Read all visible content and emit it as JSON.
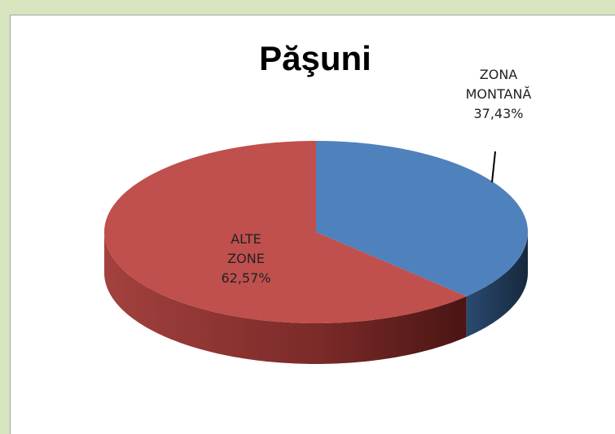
{
  "chart_data": {
    "type": "pie",
    "title": "Păşuni",
    "categories": [
      "ZONA MONTANĂ",
      "ALTE ZONE"
    ],
    "values": [
      37.43,
      62.57
    ],
    "value_labels": [
      "37,43%",
      "62,57%"
    ],
    "colors": [
      "#4f81bd",
      "#c0504d"
    ]
  }
}
